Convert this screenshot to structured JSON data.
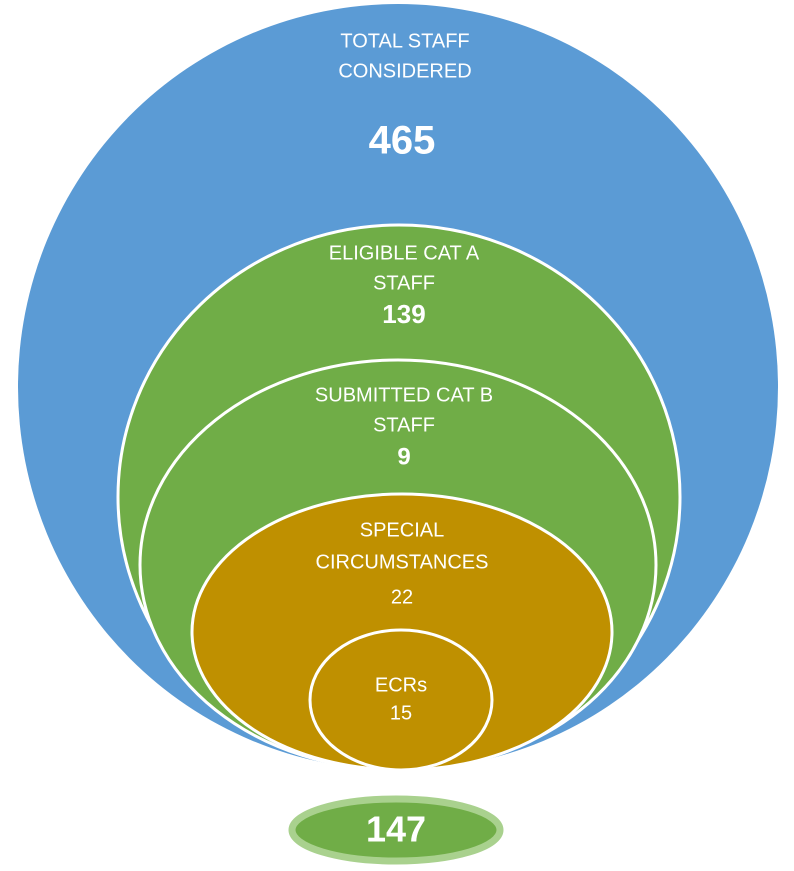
{
  "nodes": [
    {
      "label": [
        "TOTAL STAFF",
        "CONSIDERED"
      ],
      "value": "465"
    },
    {
      "label": [
        "ELIGIBLE CAT A",
        "STAFF"
      ],
      "value": "139"
    },
    {
      "label": [
        "SUBMITTED CAT B",
        "STAFF"
      ],
      "value": "9"
    },
    {
      "label": [
        "SPECIAL",
        "CIRCUMSTANCES"
      ],
      "value": "22"
    },
    {
      "label": [
        "ECRs"
      ],
      "value": "15"
    }
  ],
  "total": "147"
}
